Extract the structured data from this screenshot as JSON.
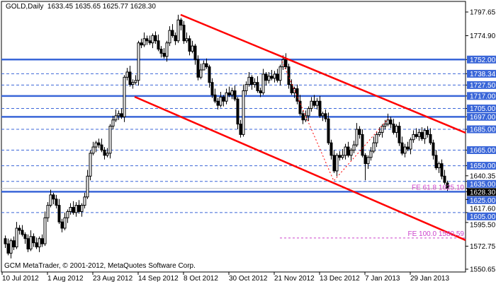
{
  "header": {
    "symbol": "GOLD,Daily",
    "open": "1633.45",
    "high": "1635.65",
    "low": "1625.77",
    "close": "1628.30"
  },
  "footer": "GCM MetaTrader, © 2001-2012, MetaQuotes Software Corp.",
  "colors": {
    "level": "#3a66d8",
    "trend": "#ff0000",
    "fibo": "#cc44cc",
    "up_body": "#ffffff",
    "down_body": "#000000",
    "current_price_line": "#c0c0c0"
  },
  "chart_data": {
    "type": "candlestick",
    "title": "GOLD,Daily",
    "ylim": [
      1550.65,
      1797.65
    ],
    "grid": false,
    "x_tick_labels": [
      {
        "bar": -1,
        "label": "10 Jul 2012"
      },
      {
        "bar": 15,
        "label": "1 Aug 2012"
      },
      {
        "bar": 31,
        "label": "23 Aug 2012"
      },
      {
        "bar": 47,
        "label": "14 Sep 2012"
      },
      {
        "bar": 63,
        "label": "8 Oct 2012"
      },
      {
        "bar": 79,
        "label": "30 Oct 2012"
      },
      {
        "bar": 95,
        "label": "21 Nov 2012"
      },
      {
        "bar": 111,
        "label": "13 Dec 2012"
      },
      {
        "bar": 127,
        "label": "7 Jan 2013"
      },
      {
        "bar": 143,
        "label": "29 Jan 2013"
      }
    ],
    "y_tick_labels": [
      "1797.65",
      "1774.90",
      "1640.35",
      "1617.60",
      "1595.50",
      "1572.75",
      "1550.65"
    ],
    "levels_solid": [
      "1752.00",
      "1717.00",
      "1697.00",
      "1625.00"
    ],
    "levels_dashed": [
      "1738.34",
      "1727.50",
      "1705.00",
      "1685.00",
      "1665.00",
      "1650.00",
      "1635.00",
      "1605.00"
    ],
    "current_price": "1628.30",
    "trend_lines": [
      {
        "from": {
          "bar": 62,
          "price": 1795
        },
        "to": {
          "bar": 162.5,
          "price": 1681.6
        }
      },
      {
        "from": {
          "bar": 45.75,
          "price": 1716.2
        },
        "to": {
          "bar": 162.5,
          "price": 1578.5
        }
      }
    ],
    "fibo_zigzag": [
      {
        "bar": 97.75,
        "price": 1750.2
      },
      {
        "bar": 116,
        "price": 1635.5
      },
      {
        "bar": 135.25,
        "price": 1695.2
      }
    ],
    "fibo_levels": [
      {
        "label": "FE 61.8 1625.10",
        "price": 1625.1
      },
      {
        "label": "FE 100.0 1580.59",
        "price": 1580.59,
        "from_bar": 97
      }
    ],
    "ohlc": [
      [
        1580,
        1583,
        1571,
        1575
      ],
      [
        1575,
        1580,
        1564,
        1566
      ],
      [
        1566,
        1580,
        1561,
        1578
      ],
      [
        1578,
        1582,
        1569,
        1572
      ],
      [
        1572,
        1596,
        1570,
        1590
      ],
      [
        1590,
        1593,
        1584,
        1588
      ],
      [
        1588,
        1593,
        1582,
        1584
      ],
      [
        1584,
        1586,
        1575,
        1580
      ],
      [
        1580,
        1584,
        1567,
        1570
      ],
      [
        1570,
        1588,
        1568,
        1582
      ],
      [
        1582,
        1585,
        1572,
        1576
      ],
      [
        1576,
        1581,
        1570,
        1572
      ],
      [
        1572,
        1582,
        1567,
        1580
      ],
      [
        1580,
        1584,
        1572,
        1575
      ],
      [
        1575,
        1606,
        1573,
        1600
      ],
      [
        1600,
        1615,
        1596,
        1612
      ],
      [
        1612,
        1627,
        1610,
        1622
      ],
      [
        1622,
        1624,
        1613,
        1618
      ],
      [
        1618,
        1622,
        1609,
        1612
      ],
      [
        1612,
        1618,
        1594,
        1596
      ],
      [
        1596,
        1599,
        1586,
        1590
      ],
      [
        1590,
        1605,
        1588,
        1600
      ],
      [
        1600,
        1608,
        1595,
        1606
      ],
      [
        1606,
        1614,
        1603,
        1610
      ],
      [
        1610,
        1616,
        1603,
        1605
      ],
      [
        1605,
        1615,
        1601,
        1612
      ],
      [
        1612,
        1617,
        1604,
        1606
      ],
      [
        1606,
        1614,
        1601,
        1612
      ],
      [
        1612,
        1624,
        1609,
        1620
      ],
      [
        1620,
        1646,
        1618,
        1640
      ],
      [
        1640,
        1665,
        1636,
        1662
      ],
      [
        1662,
        1673,
        1660,
        1668
      ],
      [
        1668,
        1674,
        1663,
        1672
      ],
      [
        1672,
        1676,
        1667,
        1670
      ],
      [
        1670,
        1676,
        1663,
        1665
      ],
      [
        1665,
        1668,
        1656,
        1660
      ],
      [
        1660,
        1667,
        1658,
        1662
      ],
      [
        1662,
        1690,
        1657,
        1688
      ],
      [
        1688,
        1698,
        1685,
        1694
      ],
      [
        1694,
        1704,
        1692,
        1698
      ],
      [
        1698,
        1703,
        1694,
        1700
      ],
      [
        1700,
        1705,
        1695,
        1697
      ],
      [
        1697,
        1737,
        1692,
        1735
      ],
      [
        1735,
        1744,
        1732,
        1740
      ],
      [
        1740,
        1746,
        1726,
        1728
      ],
      [
        1728,
        1733,
        1724,
        1730
      ],
      [
        1730,
        1737,
        1728,
        1732
      ],
      [
        1732,
        1770,
        1727,
        1768
      ],
      [
        1768,
        1772,
        1763,
        1766
      ],
      [
        1766,
        1778,
        1764,
        1772
      ],
      [
        1772,
        1775,
        1766,
        1770
      ],
      [
        1770,
        1775,
        1766,
        1768
      ],
      [
        1768,
        1777,
        1763,
        1775
      ],
      [
        1775,
        1779,
        1767,
        1770
      ],
      [
        1770,
        1776,
        1760,
        1762
      ],
      [
        1762,
        1765,
        1754,
        1758
      ],
      [
        1758,
        1763,
        1753,
        1755
      ],
      [
        1755,
        1770,
        1750,
        1768
      ],
      [
        1768,
        1784,
        1765,
        1780
      ],
      [
        1780,
        1786,
        1773,
        1775
      ],
      [
        1775,
        1778,
        1766,
        1770
      ],
      [
        1770,
        1795,
        1768,
        1790
      ],
      [
        1790,
        1792,
        1780,
        1785
      ],
      [
        1785,
        1789,
        1767,
        1770
      ],
      [
        1770,
        1778,
        1768,
        1772
      ],
      [
        1772,
        1775,
        1756,
        1760
      ],
      [
        1760,
        1770,
        1758,
        1765
      ],
      [
        1765,
        1767,
        1747,
        1752
      ],
      [
        1752,
        1756,
        1732,
        1735
      ],
      [
        1735,
        1748,
        1733,
        1742
      ],
      [
        1742,
        1751,
        1744,
        1748
      ],
      [
        1748,
        1753,
        1743,
        1745
      ],
      [
        1745,
        1747,
        1725,
        1730
      ],
      [
        1730,
        1734,
        1715,
        1718
      ],
      [
        1718,
        1724,
        1710,
        1712
      ],
      [
        1712,
        1715,
        1704,
        1708
      ],
      [
        1708,
        1721,
        1706,
        1716
      ],
      [
        1716,
        1718,
        1707,
        1712
      ],
      [
        1712,
        1724,
        1709,
        1720
      ],
      [
        1720,
        1726,
        1716,
        1718
      ],
      [
        1718,
        1725,
        1714,
        1722
      ],
      [
        1722,
        1727,
        1712,
        1714
      ],
      [
        1714,
        1716,
        1685,
        1690
      ],
      [
        1690,
        1694,
        1677,
        1680
      ],
      [
        1680,
        1728,
        1678,
        1722
      ],
      [
        1722,
        1731,
        1718,
        1728
      ],
      [
        1728,
        1740,
        1726,
        1735
      ],
      [
        1735,
        1737,
        1723,
        1728
      ],
      [
        1728,
        1734,
        1725,
        1730
      ],
      [
        1730,
        1736,
        1720,
        1722
      ],
      [
        1722,
        1725,
        1716,
        1720
      ],
      [
        1720,
        1743,
        1718,
        1738
      ],
      [
        1738,
        1740,
        1727,
        1732
      ],
      [
        1732,
        1740,
        1729,
        1736
      ],
      [
        1736,
        1742,
        1732,
        1734
      ],
      [
        1734,
        1741,
        1730,
        1738
      ],
      [
        1738,
        1743,
        1730,
        1732
      ],
      [
        1732,
        1747,
        1727,
        1745
      ],
      [
        1745,
        1756,
        1742,
        1752
      ],
      [
        1752,
        1758,
        1743,
        1745
      ],
      [
        1745,
        1748,
        1724,
        1728
      ],
      [
        1728,
        1733,
        1718,
        1720
      ],
      [
        1720,
        1726,
        1715,
        1724
      ],
      [
        1724,
        1728,
        1709,
        1712
      ],
      [
        1712,
        1718,
        1698,
        1700
      ],
      [
        1700,
        1703,
        1690,
        1694
      ],
      [
        1694,
        1703,
        1692,
        1698
      ],
      [
        1698,
        1707,
        1693,
        1705
      ],
      [
        1705,
        1716,
        1702,
        1712
      ],
      [
        1712,
        1718,
        1706,
        1708
      ],
      [
        1708,
        1715,
        1704,
        1712
      ],
      [
        1712,
        1717,
        1696,
        1698
      ],
      [
        1698,
        1702,
        1693,
        1700
      ],
      [
        1700,
        1704,
        1692,
        1695
      ],
      [
        1695,
        1701,
        1670,
        1672
      ],
      [
        1672,
        1675,
        1656,
        1660
      ],
      [
        1660,
        1665,
        1643,
        1645
      ],
      [
        1645,
        1662,
        1640,
        1660
      ],
      [
        1660,
        1664,
        1655,
        1658
      ],
      [
        1658,
        1666,
        1656,
        1660
      ],
      [
        1660,
        1671,
        1656,
        1668
      ],
      [
        1668,
        1673,
        1658,
        1660
      ],
      [
        1660,
        1667,
        1655,
        1665
      ],
      [
        1665,
        1674,
        1662,
        1670
      ],
      [
        1670,
        1691,
        1668,
        1685
      ],
      [
        1685,
        1688,
        1676,
        1680
      ],
      [
        1680,
        1685,
        1658,
        1660
      ],
      [
        1660,
        1662,
        1636,
        1652
      ],
      [
        1652,
        1660,
        1647,
        1658
      ],
      [
        1658,
        1668,
        1655,
        1664
      ],
      [
        1664,
        1678,
        1662,
        1672
      ],
      [
        1672,
        1683,
        1668,
        1680
      ],
      [
        1680,
        1687,
        1678,
        1682
      ],
      [
        1682,
        1690,
        1677,
        1688
      ],
      [
        1688,
        1694,
        1685,
        1690
      ],
      [
        1690,
        1700,
        1688,
        1694
      ],
      [
        1694,
        1697,
        1686,
        1690
      ],
      [
        1690,
        1695,
        1680,
        1682
      ],
      [
        1682,
        1690,
        1677,
        1688
      ],
      [
        1688,
        1692,
        1669,
        1672
      ],
      [
        1672,
        1678,
        1660,
        1662
      ],
      [
        1662,
        1671,
        1658,
        1668
      ],
      [
        1668,
        1673,
        1664,
        1666
      ],
      [
        1666,
        1677,
        1661,
        1675
      ],
      [
        1675,
        1684,
        1672,
        1680
      ],
      [
        1680,
        1686,
        1676,
        1678
      ],
      [
        1678,
        1685,
        1674,
        1682
      ],
      [
        1682,
        1687,
        1674,
        1676
      ],
      [
        1676,
        1686,
        1671,
        1684
      ],
      [
        1684,
        1688,
        1677,
        1680
      ],
      [
        1680,
        1686,
        1670,
        1672
      ],
      [
        1672,
        1675,
        1656,
        1660
      ],
      [
        1660,
        1665,
        1646,
        1648
      ],
      [
        1648,
        1654,
        1643,
        1652
      ],
      [
        1652,
        1656,
        1637,
        1640
      ],
      [
        1640,
        1646,
        1632,
        1634
      ],
      [
        1633.45,
        1635.65,
        1625.77,
        1628.3
      ]
    ]
  }
}
